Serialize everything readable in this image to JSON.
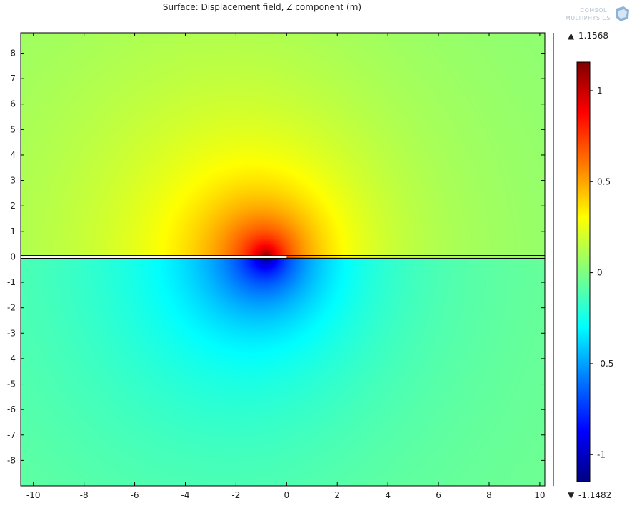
{
  "chart_data": {
    "type": "heatmap",
    "title": "Surface: Displacement field, Z component (m)",
    "xlim": [
      -10.5,
      10.2
    ],
    "ylim": [
      -9.0,
      8.8
    ],
    "x_ticks": [
      -10,
      -8,
      -6,
      -4,
      -2,
      0,
      2,
      4,
      6,
      8,
      10
    ],
    "y_ticks": [
      8,
      7,
      6,
      5,
      4,
      3,
      2,
      1,
      0,
      -1,
      -2,
      -3,
      -4,
      -5,
      -6,
      -7,
      -8
    ],
    "x_tick_labels": [
      "-10",
      "-8",
      "-6",
      "-4",
      "-2",
      "0",
      "2",
      "4",
      "6",
      "8",
      "10"
    ],
    "y_tick_labels": [
      "8",
      "7",
      "6",
      "5",
      "4",
      "3",
      "2",
      "1",
      "0",
      "-1",
      "-2",
      "-3",
      "-4",
      "-5",
      "-6",
      "-7",
      "-8"
    ],
    "colorbar": {
      "max": 1.1568,
      "min": -1.1482,
      "max_label": "1.1568",
      "min_label": "-1.1482",
      "max_marker": "▲",
      "min_marker": "▼",
      "ticks": [
        1,
        0.5,
        0,
        -0.5,
        -1
      ],
      "tick_labels": [
        "1",
        "0.5",
        "0",
        "-0.5",
        "-1"
      ],
      "colormap": "rainbow"
    },
    "field_features": {
      "peak_x": -0.8,
      "peak_y": 0.0,
      "positive_region": "upper half (y > 0)",
      "negative_region": "lower half (y < 0)",
      "interface_y": 0.0
    }
  },
  "logo": {
    "line1": "COMSOL",
    "line2": "MULTIPHYSICS"
  }
}
